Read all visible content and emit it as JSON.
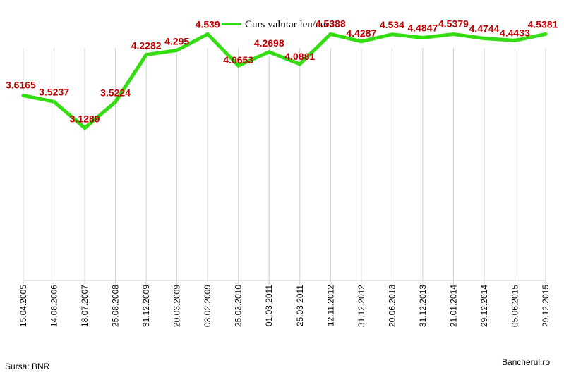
{
  "chart_data": {
    "type": "line",
    "categories": [
      "15.04.2005",
      "14.08.2006",
      "18.07.2007",
      "25.08.2008",
      "31.12.2009",
      "20.03.2009",
      "03.02.2009",
      "25.03.2010",
      "01.03.2011",
      "25.03.2011",
      "12.11.2012",
      "31.12.2012",
      "20.06.2013",
      "31.12.2013",
      "21.01.2014",
      "29.12.2014",
      "05.06.2015",
      "29.12.2015"
    ],
    "series": [
      {
        "name": "Curs valutar leu/euro",
        "values": [
          3.6165,
          3.5237,
          3.1289,
          3.5224,
          4.2282,
          4.295,
          4.539,
          4.0653,
          4.2698,
          4.0881,
          4.5388,
          4.4287,
          4.534,
          4.4847,
          4.5379,
          4.4744,
          4.4433,
          4.5381
        ],
        "labels": [
          "3.6165",
          "3.5237",
          "3.1289",
          "3.5224",
          "4.2282",
          "4.295",
          "4.539",
          "4.0653",
          "4.2698",
          "4.0881",
          "4.5388",
          "4.4287",
          "4.534",
          "4.4847",
          "4.5379",
          "4.4744",
          "4.4433",
          "4.5381"
        ]
      }
    ],
    "ylim": [
      3.0,
      4.75
    ],
    "grid": {
      "vertical": true,
      "horizontal": false
    },
    "legend_position": "top-center",
    "colors": {
      "line": "#33dd11",
      "label": "#c00000",
      "grid": "#d0d0d0"
    }
  },
  "footer": {
    "source": "Sursa: BNR",
    "brand": "Bancherul.ro"
  }
}
